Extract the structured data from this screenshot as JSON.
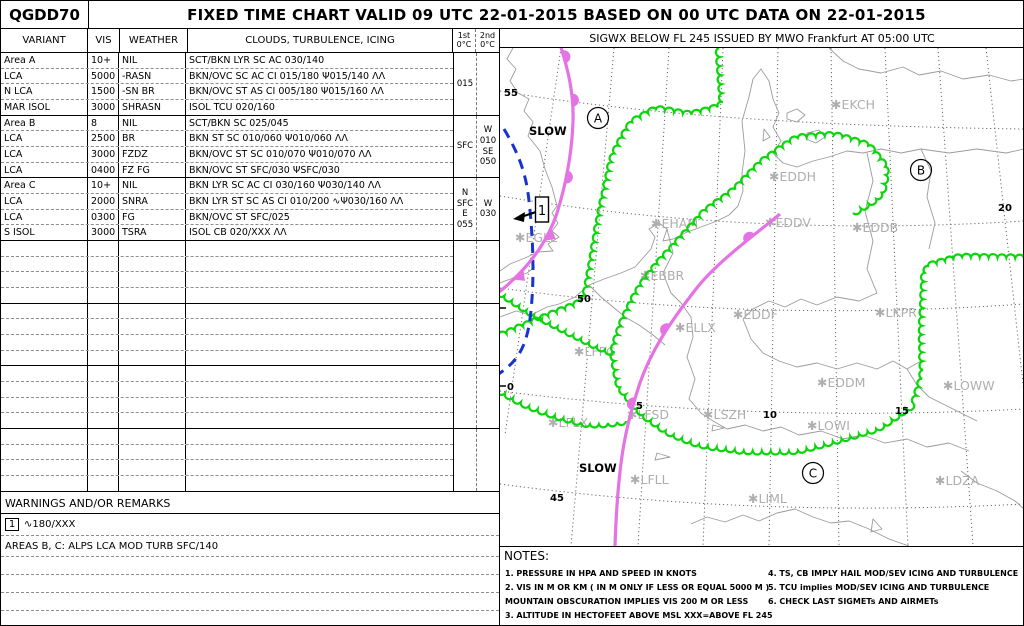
{
  "header": {
    "id": "QGDD70",
    "title": "FIXED TIME CHART VALID 09 UTC 22-01-2015 BASED ON 00 UTC DATA ON 22-01-2015"
  },
  "table": {
    "header": {
      "variant": "VARIANT",
      "vis": "VIS",
      "weather": "WEATHER",
      "clouds": "CLOUDS, TURBULENCE, ICING",
      "first": "1st",
      "second": "2nd",
      "zero": "0°C"
    },
    "groups": [
      {
        "rows": [
          [
            "Area A",
            "10+",
            "NIL",
            "SCT/BKN LYR SC AC 030/140"
          ],
          [
            "LCA",
            "5000",
            "-RASN",
            "BKN/OVC SC AC CI 015/180 Ψ015/140 ΛΛ"
          ],
          [
            "N LCA",
            "1500",
            "-SN BR",
            "BKN/OVC ST AS CI 005/180 Ψ015/160 ΛΛ"
          ],
          [
            "MAR ISOL",
            "3000",
            "SHRASN",
            "ISOL TCU 020/160"
          ]
        ],
        "first_zero": "015",
        "second_zero": ""
      },
      {
        "rows": [
          [
            "Area B",
            "8",
            "NIL",
            "SCT/BKN SC 025/045"
          ],
          [
            "LCA",
            "2500",
            "BR",
            "BKN ST SC 010/060 Ψ010/060 ΛΛ"
          ],
          [
            "LCA",
            "3000",
            "FZDZ",
            "BKN/OVC ST SC 010/070 Ψ010/070 ΛΛ"
          ],
          [
            "LCA",
            "0400",
            "FZ FG",
            "BKN/OVC ST SFC/030 ΨSFC/030"
          ]
        ],
        "first_zero": "SFC",
        "second_zero": "W\n010\nSE\n050"
      },
      {
        "rows": [
          [
            "Area C",
            "10+",
            "NIL",
            "BKN LYR SC AC CI 030/160 Ψ030/140 ΛΛ"
          ],
          [
            "LCA",
            "2000",
            "SNRA",
            "BKN LYR ST SC AS CI 010/200 ∿Ψ030/160 ΛΛ"
          ],
          [
            "LCA",
            "0300",
            "FG",
            "BKN/OVC ST SFC/025"
          ],
          [
            "S ISOL",
            "3000",
            "TSRA",
            "ISOL CB 020/XXX ΛΛ"
          ]
        ],
        "first_zero": "N\nSFC\nE\n055",
        "second_zero": "W\n030"
      }
    ],
    "empty_group_count": 4
  },
  "warnings": {
    "title": "WARNINGS AND/OR REMARKS",
    "ref": "1",
    "line1": "∿180/XXX",
    "line2": "AREAS B, C: ALPS LCA MOD TURB SFC/140"
  },
  "map": {
    "title": "SIGWX BELOW FL 245 ISSUED BY MWO Frankfurt AT 05:00 UTC",
    "airports": [
      "EKCH",
      "EDDH",
      "EHAM",
      "EDDV",
      "EDDB",
      "EBBR",
      "EDDF",
      "ELLX",
      "LKPR",
      "LFPG",
      "LFSD",
      "LFLX",
      "LSZH",
      "EDDM",
      "LOWW",
      "LOWI",
      "LFLL",
      "LIML",
      "LDZA",
      "EGLL"
    ],
    "areas": [
      "A",
      "B",
      "C"
    ],
    "annotations": [
      "SLOW",
      "SLOW"
    ],
    "marker_ref": "1",
    "lat_labels": [
      "55",
      "50",
      "45"
    ],
    "lon_labels": [
      "0",
      "5",
      "10",
      "15",
      "20"
    ],
    "colors": {
      "front": "#e473e4",
      "cloud_boundary": "#0bd60b",
      "squall_line": "#1733cc",
      "coast": "#9b9b9b"
    }
  },
  "notes": {
    "title": "NOTES:",
    "left": [
      "1. PRESSURE IN HPA AND SPEED IN KNOTS",
      "2. VIS IN M OR KM ( IN M ONLY IF LESS OR EQUAL 5000 M )",
      "MOUNTAIN OBSCURATION IMPLIES VIS 200 M OR LESS",
      "3. ALTITUDE IN HECTOFEET ABOVE MSL XXX=ABOVE FL 245"
    ],
    "right": [
      "4. TS, CB IMPLY HAIL MOD/SEV ICING AND TURBULENCE",
      "5. TCU implies MOD/SEV ICING AND TURBULENCE",
      "6. CHECK LAST SIGMETs AND AIRMETs"
    ]
  }
}
